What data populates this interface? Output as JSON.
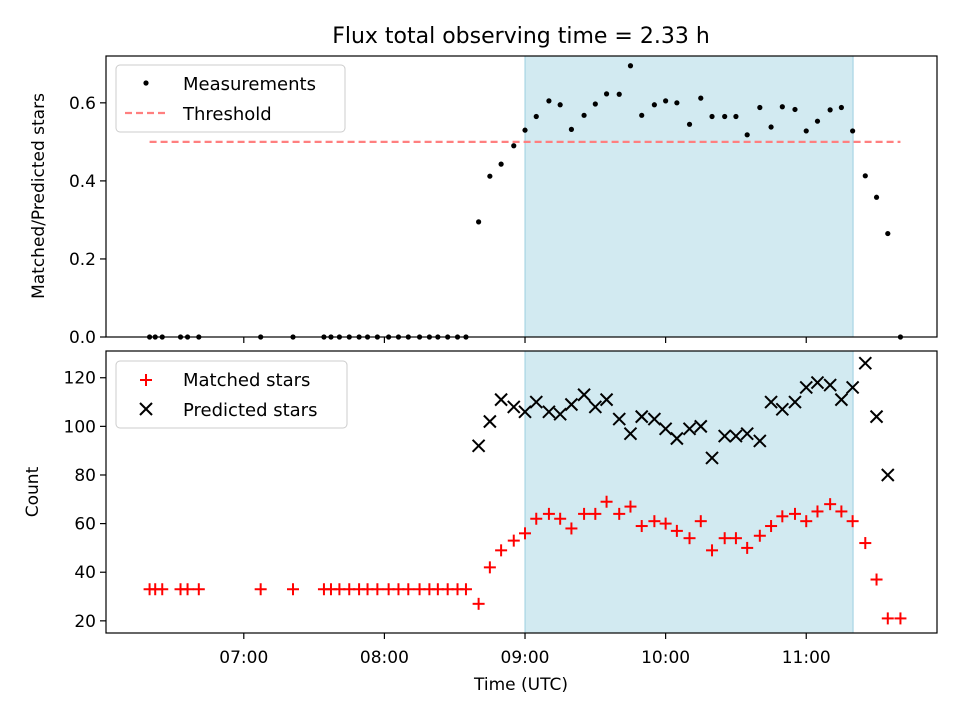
{
  "figure": {
    "title": "Flux total observing time = 2.33 h",
    "xlabel": "Time (UTC)",
    "x_ticks": [
      "07:00",
      "08:00",
      "09:00",
      "10:00",
      "11:00"
    ],
    "x_tick_hours": [
      7,
      8,
      9,
      10,
      11
    ],
    "x_range_hours": [
      6.02,
      11.93
    ],
    "shaded_interval_hours": [
      9.0,
      11.333
    ],
    "shade_color": "#add8e6"
  },
  "chart_data": [
    {
      "type": "scatter",
      "ylabel": "Matched/Predicted stars",
      "ylim": [
        0,
        0.72
      ],
      "y_ticks": [
        "0.0",
        "0.2",
        "0.4",
        "0.6"
      ],
      "y_tick_values": [
        0,
        0.2,
        0.4,
        0.6
      ],
      "legend": "top-left",
      "threshold": {
        "name": "Threshold",
        "y": 0.5,
        "x_range_hours": [
          6.33,
          11.67
        ],
        "color": "#ff7f7f",
        "style": "dashed"
      },
      "series": [
        {
          "name": "Measurements",
          "color": "#000000",
          "marker": "dot",
          "points": [
            [
              6.33,
              0.0
            ],
            [
              6.37,
              0.0
            ],
            [
              6.42,
              0.0
            ],
            [
              6.55,
              0.0
            ],
            [
              6.6,
              0.0
            ],
            [
              6.68,
              0.0
            ],
            [
              7.12,
              0.0
            ],
            [
              7.35,
              0.0
            ],
            [
              7.57,
              0.0
            ],
            [
              7.62,
              0.0
            ],
            [
              7.68,
              0.0
            ],
            [
              7.75,
              0.0
            ],
            [
              7.82,
              0.0
            ],
            [
              7.88,
              0.0
            ],
            [
              7.95,
              0.0
            ],
            [
              8.03,
              0.0
            ],
            [
              8.1,
              0.0
            ],
            [
              8.17,
              0.0
            ],
            [
              8.25,
              0.0
            ],
            [
              8.32,
              0.0
            ],
            [
              8.38,
              0.0
            ],
            [
              8.45,
              0.0
            ],
            [
              8.52,
              0.0
            ],
            [
              8.58,
              0.0
            ],
            [
              8.67,
              0.295
            ],
            [
              8.75,
              0.412
            ],
            [
              8.83,
              0.443
            ],
            [
              8.92,
              0.49
            ],
            [
              9.0,
              0.53
            ],
            [
              9.08,
              0.565
            ],
            [
              9.17,
              0.605
            ],
            [
              9.25,
              0.595
            ],
            [
              9.33,
              0.532
            ],
            [
              9.42,
              0.568
            ],
            [
              9.5,
              0.597
            ],
            [
              9.58,
              0.623
            ],
            [
              9.67,
              0.622
            ],
            [
              9.75,
              0.695
            ],
            [
              9.83,
              0.568
            ],
            [
              9.92,
              0.595
            ],
            [
              10.0,
              0.605
            ],
            [
              10.08,
              0.6
            ],
            [
              10.17,
              0.545
            ],
            [
              10.25,
              0.612
            ],
            [
              10.33,
              0.565
            ],
            [
              10.42,
              0.565
            ],
            [
              10.5,
              0.565
            ],
            [
              10.58,
              0.518
            ],
            [
              10.67,
              0.588
            ],
            [
              10.75,
              0.538
            ],
            [
              10.83,
              0.59
            ],
            [
              10.92,
              0.583
            ],
            [
              11.0,
              0.528
            ],
            [
              11.08,
              0.553
            ],
            [
              11.17,
              0.582
            ],
            [
              11.25,
              0.588
            ],
            [
              11.33,
              0.528
            ],
            [
              11.42,
              0.413
            ],
            [
              11.5,
              0.358
            ],
            [
              11.58,
              0.265
            ],
            [
              11.67,
              0.0
            ]
          ]
        }
      ]
    },
    {
      "type": "scatter",
      "ylabel": "Count",
      "ylim": [
        15,
        131
      ],
      "y_ticks": [
        "20",
        "40",
        "60",
        "80",
        "100",
        "120"
      ],
      "y_tick_values": [
        20,
        40,
        60,
        80,
        100,
        120
      ],
      "legend": "top-left",
      "series": [
        {
          "name": "Matched stars",
          "color": "#ff0000",
          "marker": "plus",
          "points": [
            [
              6.33,
              33
            ],
            [
              6.37,
              33
            ],
            [
              6.42,
              33
            ],
            [
              6.55,
              33
            ],
            [
              6.6,
              33
            ],
            [
              6.68,
              33
            ],
            [
              7.12,
              33
            ],
            [
              7.35,
              33
            ],
            [
              7.57,
              33
            ],
            [
              7.62,
              33
            ],
            [
              7.68,
              33
            ],
            [
              7.75,
              33
            ],
            [
              7.82,
              33
            ],
            [
              7.88,
              33
            ],
            [
              7.95,
              33
            ],
            [
              8.03,
              33
            ],
            [
              8.1,
              33
            ],
            [
              8.17,
              33
            ],
            [
              8.25,
              33
            ],
            [
              8.32,
              33
            ],
            [
              8.38,
              33
            ],
            [
              8.45,
              33
            ],
            [
              8.52,
              33
            ],
            [
              8.58,
              33
            ],
            [
              8.67,
              27
            ],
            [
              8.75,
              42
            ],
            [
              8.83,
              49
            ],
            [
              8.92,
              53
            ],
            [
              9.0,
              56
            ],
            [
              9.08,
              62
            ],
            [
              9.17,
              64
            ],
            [
              9.25,
              62
            ],
            [
              9.33,
              58
            ],
            [
              9.42,
              64
            ],
            [
              9.5,
              64
            ],
            [
              9.58,
              69
            ],
            [
              9.67,
              64
            ],
            [
              9.75,
              67
            ],
            [
              9.83,
              59
            ],
            [
              9.92,
              61
            ],
            [
              10.0,
              60
            ],
            [
              10.08,
              57
            ],
            [
              10.17,
              54
            ],
            [
              10.25,
              61
            ],
            [
              10.33,
              49
            ],
            [
              10.42,
              54
            ],
            [
              10.5,
              54
            ],
            [
              10.58,
              50
            ],
            [
              10.67,
              55
            ],
            [
              10.75,
              59
            ],
            [
              10.83,
              63
            ],
            [
              10.92,
              64
            ],
            [
              11.0,
              61
            ],
            [
              11.08,
              65
            ],
            [
              11.17,
              68
            ],
            [
              11.25,
              65
            ],
            [
              11.33,
              61
            ],
            [
              11.42,
              52
            ],
            [
              11.5,
              37
            ],
            [
              11.58,
              21
            ],
            [
              11.67,
              21
            ]
          ]
        },
        {
          "name": "Predicted stars",
          "color": "#000000",
          "marker": "x",
          "points": [
            [
              8.67,
              92
            ],
            [
              8.75,
              102
            ],
            [
              8.83,
              111
            ],
            [
              8.92,
              108
            ],
            [
              9.0,
              106
            ],
            [
              9.08,
              110
            ],
            [
              9.17,
              106
            ],
            [
              9.25,
              105
            ],
            [
              9.33,
              109
            ],
            [
              9.42,
              113
            ],
            [
              9.5,
              108
            ],
            [
              9.58,
              111
            ],
            [
              9.67,
              103
            ],
            [
              9.75,
              97
            ],
            [
              9.83,
              104
            ],
            [
              9.92,
              103
            ],
            [
              10.0,
              99
            ],
            [
              10.08,
              95
            ],
            [
              10.17,
              99
            ],
            [
              10.25,
              100
            ],
            [
              10.33,
              87
            ],
            [
              10.42,
              96
            ],
            [
              10.5,
              96
            ],
            [
              10.58,
              97
            ],
            [
              10.67,
              94
            ],
            [
              10.75,
              110
            ],
            [
              10.83,
              107
            ],
            [
              10.92,
              110
            ],
            [
              11.0,
              116
            ],
            [
              11.08,
              118
            ],
            [
              11.17,
              117
            ],
            [
              11.25,
              111
            ],
            [
              11.33,
              116
            ],
            [
              11.42,
              126
            ],
            [
              11.5,
              104
            ],
            [
              11.58,
              80
            ]
          ]
        }
      ]
    }
  ]
}
